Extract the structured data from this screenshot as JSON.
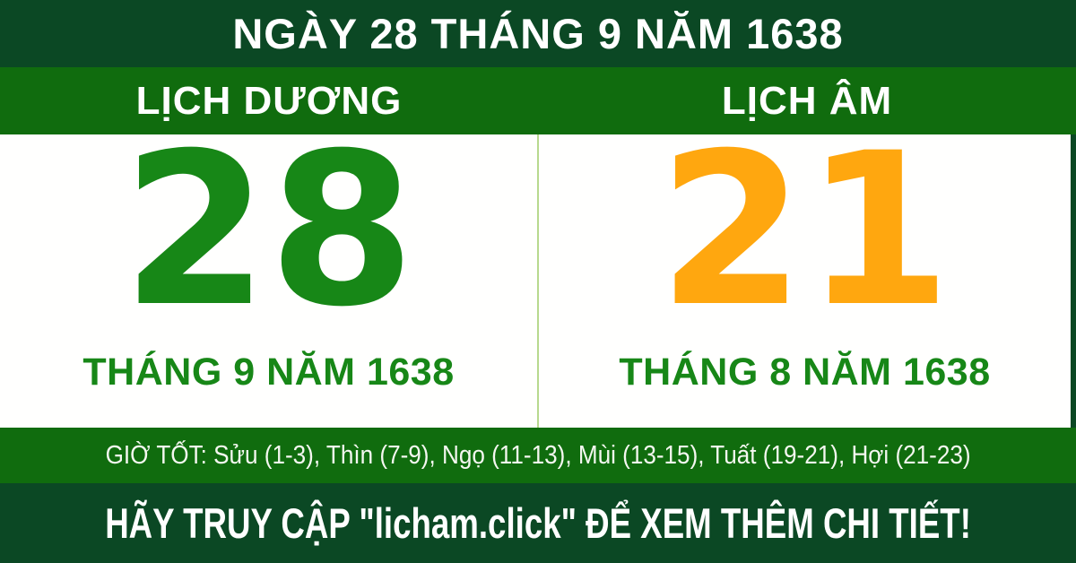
{
  "header": {
    "title": "NGÀY 28 THÁNG 9 NĂM 1638"
  },
  "calendar": {
    "solar": {
      "label": "LỊCH DƯƠNG",
      "day": "28",
      "month_year": "THÁNG 9 NĂM 1638",
      "color": "#178717"
    },
    "lunar": {
      "label": "LỊCH ÂM",
      "day": "21",
      "month_year": "THÁNG 8 NĂM 1638",
      "color": "#ffa70f"
    }
  },
  "good_hours": {
    "text": "GIỜ TỐT: Sửu (1-3), Thìn (7-9), Ngọ (11-13), Mùi (13-15), Tuất (19-21), Hợi (21-23)"
  },
  "footer": {
    "cta": "HÃY TRUY CẬP \"licham.click\" ĐỂ XEM THÊM CHI TIẾT!"
  },
  "colors": {
    "dark_green_bar": "#0b4824",
    "green_bar": "#106c0e",
    "solar_day_green": "#178717",
    "lunar_day_orange": "#ffa70f",
    "month_text_green": "#178717",
    "divider_light_green": "#b7d98e",
    "panel_white": "#fffffe",
    "text_white": "#ffffff"
  }
}
